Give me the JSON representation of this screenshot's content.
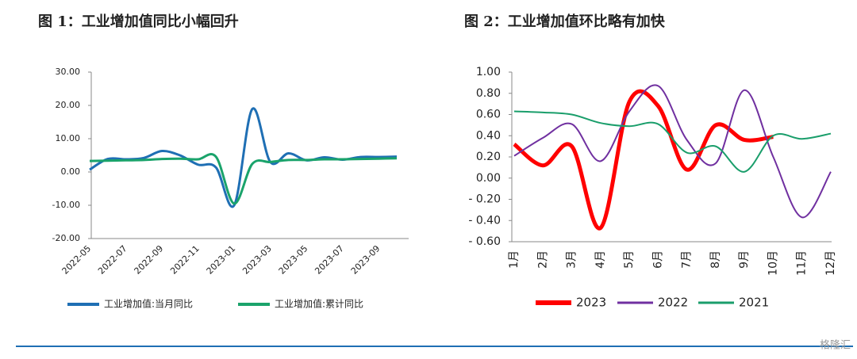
{
  "chart_data": [
    {
      "type": "line",
      "title": "图 1：工业增加值同比小幅回升",
      "categories": [
        "2022-05",
        null,
        "2022-07",
        null,
        "2022-09",
        null,
        "2022-11",
        null,
        "2023-01",
        null,
        "2023-03",
        null,
        "2023-05",
        null,
        "2023-07",
        null,
        "2023-09",
        null
      ],
      "series": [
        {
          "name": "工业增加值:当月同比",
          "color": "#1f6fb4",
          "values": [
            0.7,
            3.9,
            3.8,
            4.2,
            6.3,
            5.0,
            2.2,
            1.3,
            -10.0,
            18.9,
            3.0,
            5.6,
            3.5,
            4.4,
            3.7,
            4.5,
            4.5,
            4.6
          ]
        },
        {
          "name": "工业增加值:累计同比",
          "color": "#1aa36b",
          "values": [
            3.3,
            3.4,
            3.5,
            3.6,
            3.9,
            4.0,
            3.8,
            4.5,
            -9.5,
            2.4,
            3.0,
            3.6,
            3.6,
            3.8,
            3.8,
            3.9,
            4.0,
            4.1
          ]
        }
      ],
      "ylim": [
        -20,
        30
      ],
      "yticks": [
        {
          "value": -20,
          "label": "-20.00"
        },
        {
          "value": -10,
          "label": "-10.00"
        },
        {
          "value": 0,
          "label": "0.00"
        },
        {
          "value": 10,
          "label": "10.00"
        },
        {
          "value": 20,
          "label": "20.00"
        },
        {
          "value": 30,
          "label": "30.00"
        }
      ]
    },
    {
      "type": "line",
      "title": "图 2：工业增加值环比略有加快",
      "categories": [
        "1月",
        "2月",
        "3月",
        "4月",
        "5月",
        "6月",
        "7月",
        "8月",
        "9月",
        "10月",
        "11月",
        "12月"
      ],
      "series": [
        {
          "name": "2023",
          "color": "#ff0000",
          "values": [
            0.32,
            0.12,
            0.3,
            -0.47,
            0.72,
            0.68,
            0.08,
            0.5,
            0.36,
            0.39,
            null,
            null
          ]
        },
        {
          "name": "2022",
          "color": "#7030a0",
          "values": [
            0.21,
            0.38,
            0.51,
            0.16,
            0.63,
            0.87,
            0.36,
            0.14,
            0.83,
            0.2,
            -0.37,
            0.06
          ]
        },
        {
          "name": "2021",
          "color": "#1a9e6b",
          "values": [
            0.63,
            0.62,
            0.6,
            0.52,
            0.49,
            0.51,
            0.24,
            0.3,
            0.06,
            0.4,
            0.37,
            0.42
          ]
        }
      ],
      "ylim": [
        -0.6,
        1.0
      ],
      "yticks": [
        {
          "value": -0.6,
          "label": "- 0.60"
        },
        {
          "value": -0.4,
          "label": "- 0.40"
        },
        {
          "value": -0.2,
          "label": "- 0.20"
        },
        {
          "value": 0,
          "label": "0.00"
        },
        {
          "value": 0.2,
          "label": "0.20"
        },
        {
          "value": 0.4,
          "label": "0.40"
        },
        {
          "value": 0.6,
          "label": "0.60"
        },
        {
          "value": 0.8,
          "label": "0.80"
        },
        {
          "value": 1.0,
          "label": "1.00"
        }
      ]
    }
  ],
  "watermark": "格隆汇"
}
